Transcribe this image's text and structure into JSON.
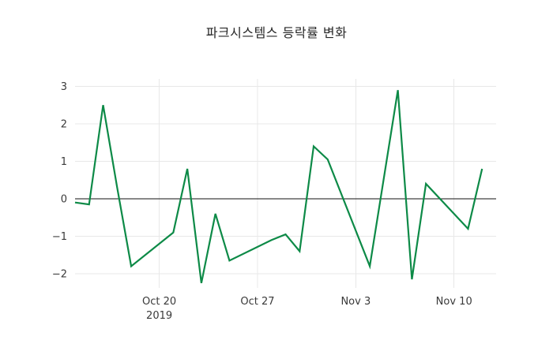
{
  "chart_data": {
    "type": "line",
    "title": "파크시스템스 등락률 변화",
    "xlabel": "",
    "ylabel": "",
    "xlim": [
      "2019-10-14",
      "2019-11-13"
    ],
    "ylim": [
      -2.38,
      3.2
    ],
    "grid": true,
    "zeroline": true,
    "legend": "none",
    "line_color": "#0d8a47",
    "grid_color": "#e8e8e8",
    "zeroline_color": "#111111",
    "tick_color": "#3a3a3a",
    "background": "#ffffff",
    "series": [
      {
        "name": "등락률",
        "x": [
          "2019-10-14",
          "2019-10-15",
          "2019-10-16",
          "2019-10-17",
          "2019-10-18",
          "2019-10-21",
          "2019-10-22",
          "2019-10-23",
          "2019-10-24",
          "2019-10-25",
          "2019-10-28",
          "2019-10-29",
          "2019-10-30",
          "2019-10-31",
          "2019-11-01",
          "2019-11-04",
          "2019-11-05",
          "2019-11-06",
          "2019-11-07",
          "2019-11-08",
          "2019-11-11",
          "2019-11-12"
        ],
        "values": [
          -0.1,
          -0.15,
          2.5,
          0.3,
          -1.8,
          -0.9,
          0.8,
          -2.25,
          -0.4,
          -1.65,
          -1.1,
          -0.95,
          -1.4,
          1.4,
          1.05,
          -1.8,
          0.55,
          2.9,
          -2.15,
          0.4,
          -0.8,
          0.8
        ]
      }
    ],
    "xticks": [
      {
        "pos": "2019-10-20",
        "label": "Oct 20",
        "sublabel": "2019"
      },
      {
        "pos": "2019-10-27",
        "label": "Oct 27",
        "sublabel": ""
      },
      {
        "pos": "2019-11-03",
        "label": "Nov 3",
        "sublabel": ""
      },
      {
        "pos": "2019-11-10",
        "label": "Nov 10",
        "sublabel": ""
      }
    ],
    "yticks": [
      {
        "v": 3,
        "label": "3"
      },
      {
        "v": 2,
        "label": "2"
      },
      {
        "v": 1,
        "label": "1"
      },
      {
        "v": 0,
        "label": "0"
      },
      {
        "v": -1,
        "label": "−1"
      },
      {
        "v": -2,
        "label": "−2"
      }
    ]
  }
}
